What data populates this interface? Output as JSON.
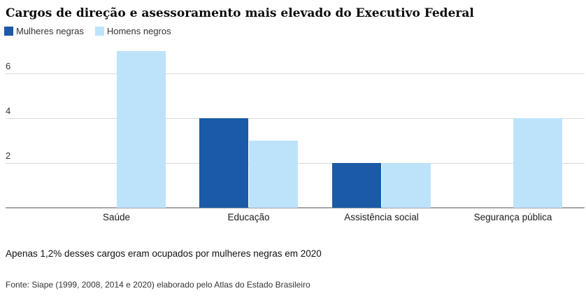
{
  "chart_data": {
    "type": "bar",
    "title": "Cargos de direção e asessoramento mais elevado do Executivo Federal",
    "categories": [
      "Saúde",
      "Educação",
      "Assistência social",
      "Segurança pública"
    ],
    "series": [
      {
        "name": "Mulheres negras",
        "color": "#1b5aa6",
        "values": [
          0,
          4,
          2,
          0
        ]
      },
      {
        "name": "Homens negros",
        "color": "#bde3fb",
        "values": [
          7,
          3,
          2,
          4
        ]
      }
    ],
    "yticks": [
      2,
      4,
      6
    ],
    "ylim": [
      0,
      7.25
    ],
    "grid": "horizontal",
    "legend_position": "top-left"
  },
  "footer": {
    "note": "Apenas 1,2% desses cargos eram ocupados por mulheres negras em 2020",
    "source": "Fonte: Siape (1999, 2008, 2014 e 2020) elaborado pelo Atlas do Estado Brasileiro"
  },
  "colors": {
    "gridline": "#d9d9d9",
    "baseline": "#a6a6a6",
    "text": "#333333",
    "title": "#0a0a0a"
  }
}
